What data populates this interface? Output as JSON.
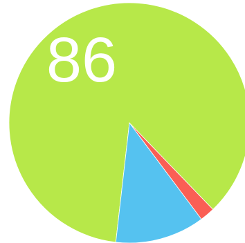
{
  "chart_data": {
    "type": "pie",
    "slices": [
      {
        "value": 86,
        "color": "#b7e849"
      },
      {
        "value": 2,
        "color": "#fa5f55"
      },
      {
        "value": 12,
        "color": "#55c2f0"
      }
    ],
    "labels": {
      "main": "86"
    }
  }
}
